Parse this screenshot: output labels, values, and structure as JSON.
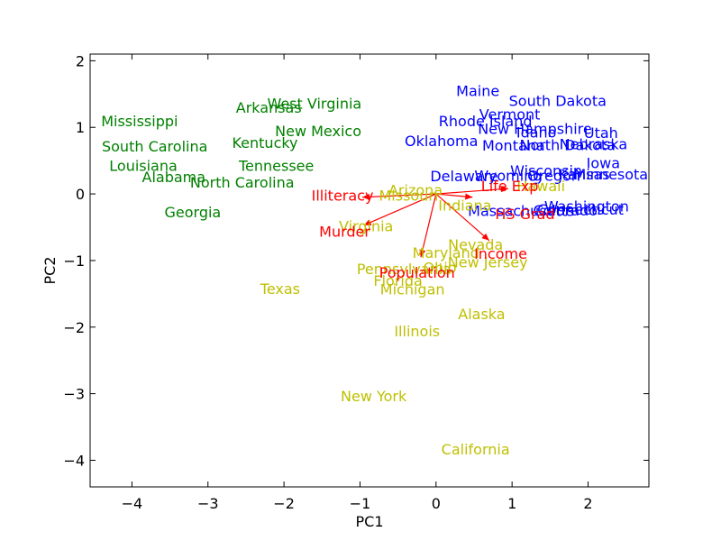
{
  "chart_data": {
    "type": "scatter",
    "title": "",
    "xlabel": "PC1",
    "ylabel": "PC2",
    "xlim": [
      -4.55,
      2.8
    ],
    "ylim": [
      -4.4,
      2.1
    ],
    "xticks": [
      -4,
      -3,
      -2,
      -1,
      0,
      1,
      2
    ],
    "yticks": [
      -4,
      -3,
      -2,
      -1,
      0,
      1,
      2
    ],
    "tick_labels_x": [
      "−4",
      "−3",
      "−2",
      "−1",
      "0",
      "1",
      "2"
    ],
    "tick_labels_y": [
      "−4",
      "−3",
      "−2",
      "−1",
      "0",
      "1",
      "2"
    ],
    "grid": false,
    "colors": {
      "cluster1": "#008000",
      "cluster2": "#0000ff",
      "cluster3": "#bfbf00",
      "vectors": "#ff0000"
    },
    "series": [
      {
        "color_key": "cluster1",
        "points": [
          {
            "label": "Mississippi",
            "x": -3.9,
            "y": 1.1
          },
          {
            "label": "Arkansas",
            "x": -2.2,
            "y": 1.3
          },
          {
            "label": "West Virginia",
            "x": -1.6,
            "y": 1.36
          },
          {
            "label": "New Mexico",
            "x": -1.55,
            "y": 0.95
          },
          {
            "label": "South Carolina",
            "x": -3.7,
            "y": 0.72
          },
          {
            "label": "Kentucky",
            "x": -2.25,
            "y": 0.77
          },
          {
            "label": "Louisiana",
            "x": -3.85,
            "y": 0.43
          },
          {
            "label": "Tennessee",
            "x": -2.1,
            "y": 0.43
          },
          {
            "label": "Alabama",
            "x": -3.45,
            "y": 0.26
          },
          {
            "label": "North Carolina",
            "x": -2.55,
            "y": 0.18
          },
          {
            "label": "Georgia",
            "x": -3.2,
            "y": -0.27
          }
        ]
      },
      {
        "color_key": "cluster2",
        "points": [
          {
            "label": "Maine",
            "x": 0.55,
            "y": 1.55
          },
          {
            "label": "South Dakota",
            "x": 1.6,
            "y": 1.4
          },
          {
            "label": "Vermont",
            "x": 0.97,
            "y": 1.2
          },
          {
            "label": "Rhode Island",
            "x": 0.65,
            "y": 1.1
          },
          {
            "label": "New Hampshire",
            "x": 1.3,
            "y": 0.98
          },
          {
            "label": "Utah",
            "x": 2.17,
            "y": 0.92
          },
          {
            "label": "Idaho",
            "x": 1.32,
            "y": 0.93
          },
          {
            "label": "Oklahoma",
            "x": 0.07,
            "y": 0.8
          },
          {
            "label": "Montana",
            "x": 1.02,
            "y": 0.73
          },
          {
            "label": "North Dakota",
            "x": 1.73,
            "y": 0.74
          },
          {
            "label": "Nebraska",
            "x": 2.07,
            "y": 0.75
          },
          {
            "label": "Iowa",
            "x": 2.2,
            "y": 0.47
          },
          {
            "label": "Delaware",
            "x": 0.37,
            "y": 0.27
          },
          {
            "label": "Wyoming",
            "x": 0.95,
            "y": 0.28
          },
          {
            "label": "Wisconsin",
            "x": 1.45,
            "y": 0.35
          },
          {
            "label": "Oregon",
            "x": 1.55,
            "y": 0.28
          },
          {
            "label": "Kansas",
            "x": 1.95,
            "y": 0.3
          },
          {
            "label": "Minnesota",
            "x": 2.3,
            "y": 0.3
          },
          {
            "label": "Massachusetts",
            "x": 1.12,
            "y": -0.25
          },
          {
            "label": "Colorado",
            "x": 1.7,
            "y": -0.24
          },
          {
            "label": "Connecticut",
            "x": 1.9,
            "y": -0.23
          },
          {
            "label": "Washington",
            "x": 1.98,
            "y": -0.18
          }
        ]
      },
      {
        "color_key": "cluster3",
        "points": [
          {
            "label": "Arizona",
            "x": -0.27,
            "y": 0.06
          },
          {
            "label": "Missouri",
            "x": -0.36,
            "y": -0.02
          },
          {
            "label": "Indiana",
            "x": 0.38,
            "y": -0.17
          },
          {
            "label": "Virginia",
            "x": -0.92,
            "y": -0.48
          },
          {
            "label": "Hawaii",
            "x": 1.38,
            "y": 0.12
          },
          {
            "label": "Nevada",
            "x": 0.52,
            "y": -0.76
          },
          {
            "label": "Maryland",
            "x": 0.13,
            "y": -0.88
          },
          {
            "label": "New Jersey",
            "x": 0.68,
            "y": -1.02
          },
          {
            "label": "Ohio",
            "x": 0.05,
            "y": -1.1
          },
          {
            "label": "Pennsylvania",
            "x": -0.42,
            "y": -1.12
          },
          {
            "label": "Florida",
            "x": -0.5,
            "y": -1.3
          },
          {
            "label": "Michigan",
            "x": -0.31,
            "y": -1.43
          },
          {
            "label": "Texas",
            "x": -2.05,
            "y": -1.42
          },
          {
            "label": "Alaska",
            "x": 0.6,
            "y": -1.8
          },
          {
            "label": "Illinois",
            "x": -0.25,
            "y": -2.06
          },
          {
            "label": "New York",
            "x": -0.82,
            "y": -3.03
          },
          {
            "label": "California",
            "x": 0.52,
            "y": -3.83
          }
        ]
      }
    ],
    "vectors": [
      {
        "label": "Life Exp",
        "x": 0.95,
        "y": 0.08,
        "label_x": 0.97,
        "label_y": 0.12
      },
      {
        "label": "HS Grad",
        "x": 0.48,
        "y": -0.05,
        "label_x": 1.17,
        "label_y": -0.3
      },
      {
        "label": "Illiteracy",
        "x": -0.97,
        "y": -0.05,
        "label_x": -1.23,
        "label_y": -0.02
      },
      {
        "label": "Murder",
        "x": -0.95,
        "y": -0.47,
        "label_x": -1.2,
        "label_y": -0.56
      },
      {
        "label": "Income",
        "x": 0.7,
        "y": -0.7,
        "label_x": 0.85,
        "label_y": -0.89
      },
      {
        "label": "Population",
        "x": -0.2,
        "y": -0.95,
        "label_x": -0.25,
        "label_y": -1.18
      }
    ]
  }
}
